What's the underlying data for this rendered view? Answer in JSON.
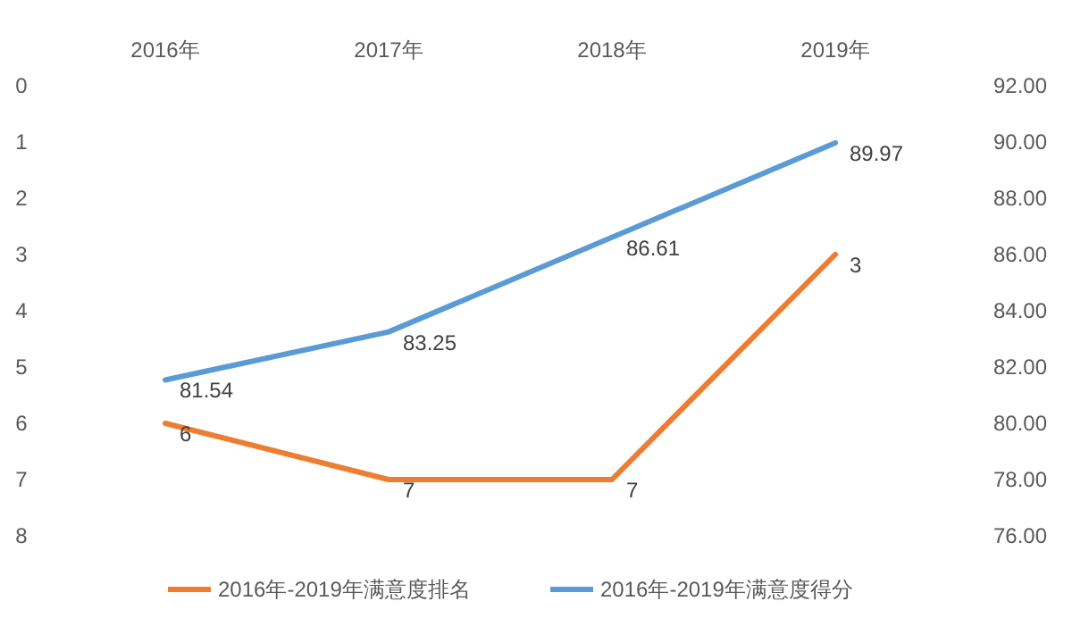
{
  "chart_data": {
    "type": "line",
    "categories": [
      "2016年",
      "2017年",
      "2018年",
      "2019年"
    ],
    "series": [
      {
        "name": "2016年-2019年满意度排名",
        "color": "#ed7d31",
        "axis": "y",
        "values": [
          6,
          7,
          7,
          3
        ]
      },
      {
        "name": "2016年-2019年满意度得分",
        "color": "#5b9bd5",
        "axis": "y2",
        "values": [
          81.54,
          83.25,
          86.61,
          89.97
        ]
      }
    ],
    "ylim": [
      8,
      0
    ],
    "yticks": [
      0,
      1,
      2,
      3,
      4,
      5,
      6,
      7,
      8
    ],
    "y2lim": [
      76,
      92
    ],
    "y2ticks": [
      {
        "value": 76,
        "label": "76.00"
      },
      {
        "value": 78,
        "label": "78.00"
      },
      {
        "value": 80,
        "label": "80.00"
      },
      {
        "value": 82,
        "label": "82.00"
      },
      {
        "value": 84,
        "label": "84.00"
      },
      {
        "value": 86,
        "label": "86.00"
      },
      {
        "value": 88,
        "label": "88.00"
      },
      {
        "value": 90,
        "label": "90.00"
      },
      {
        "value": 92,
        "label": "92.00"
      }
    ],
    "data_labels": true,
    "legend": "bottom",
    "grid": false,
    "marker": "none",
    "line_style": "solid"
  }
}
